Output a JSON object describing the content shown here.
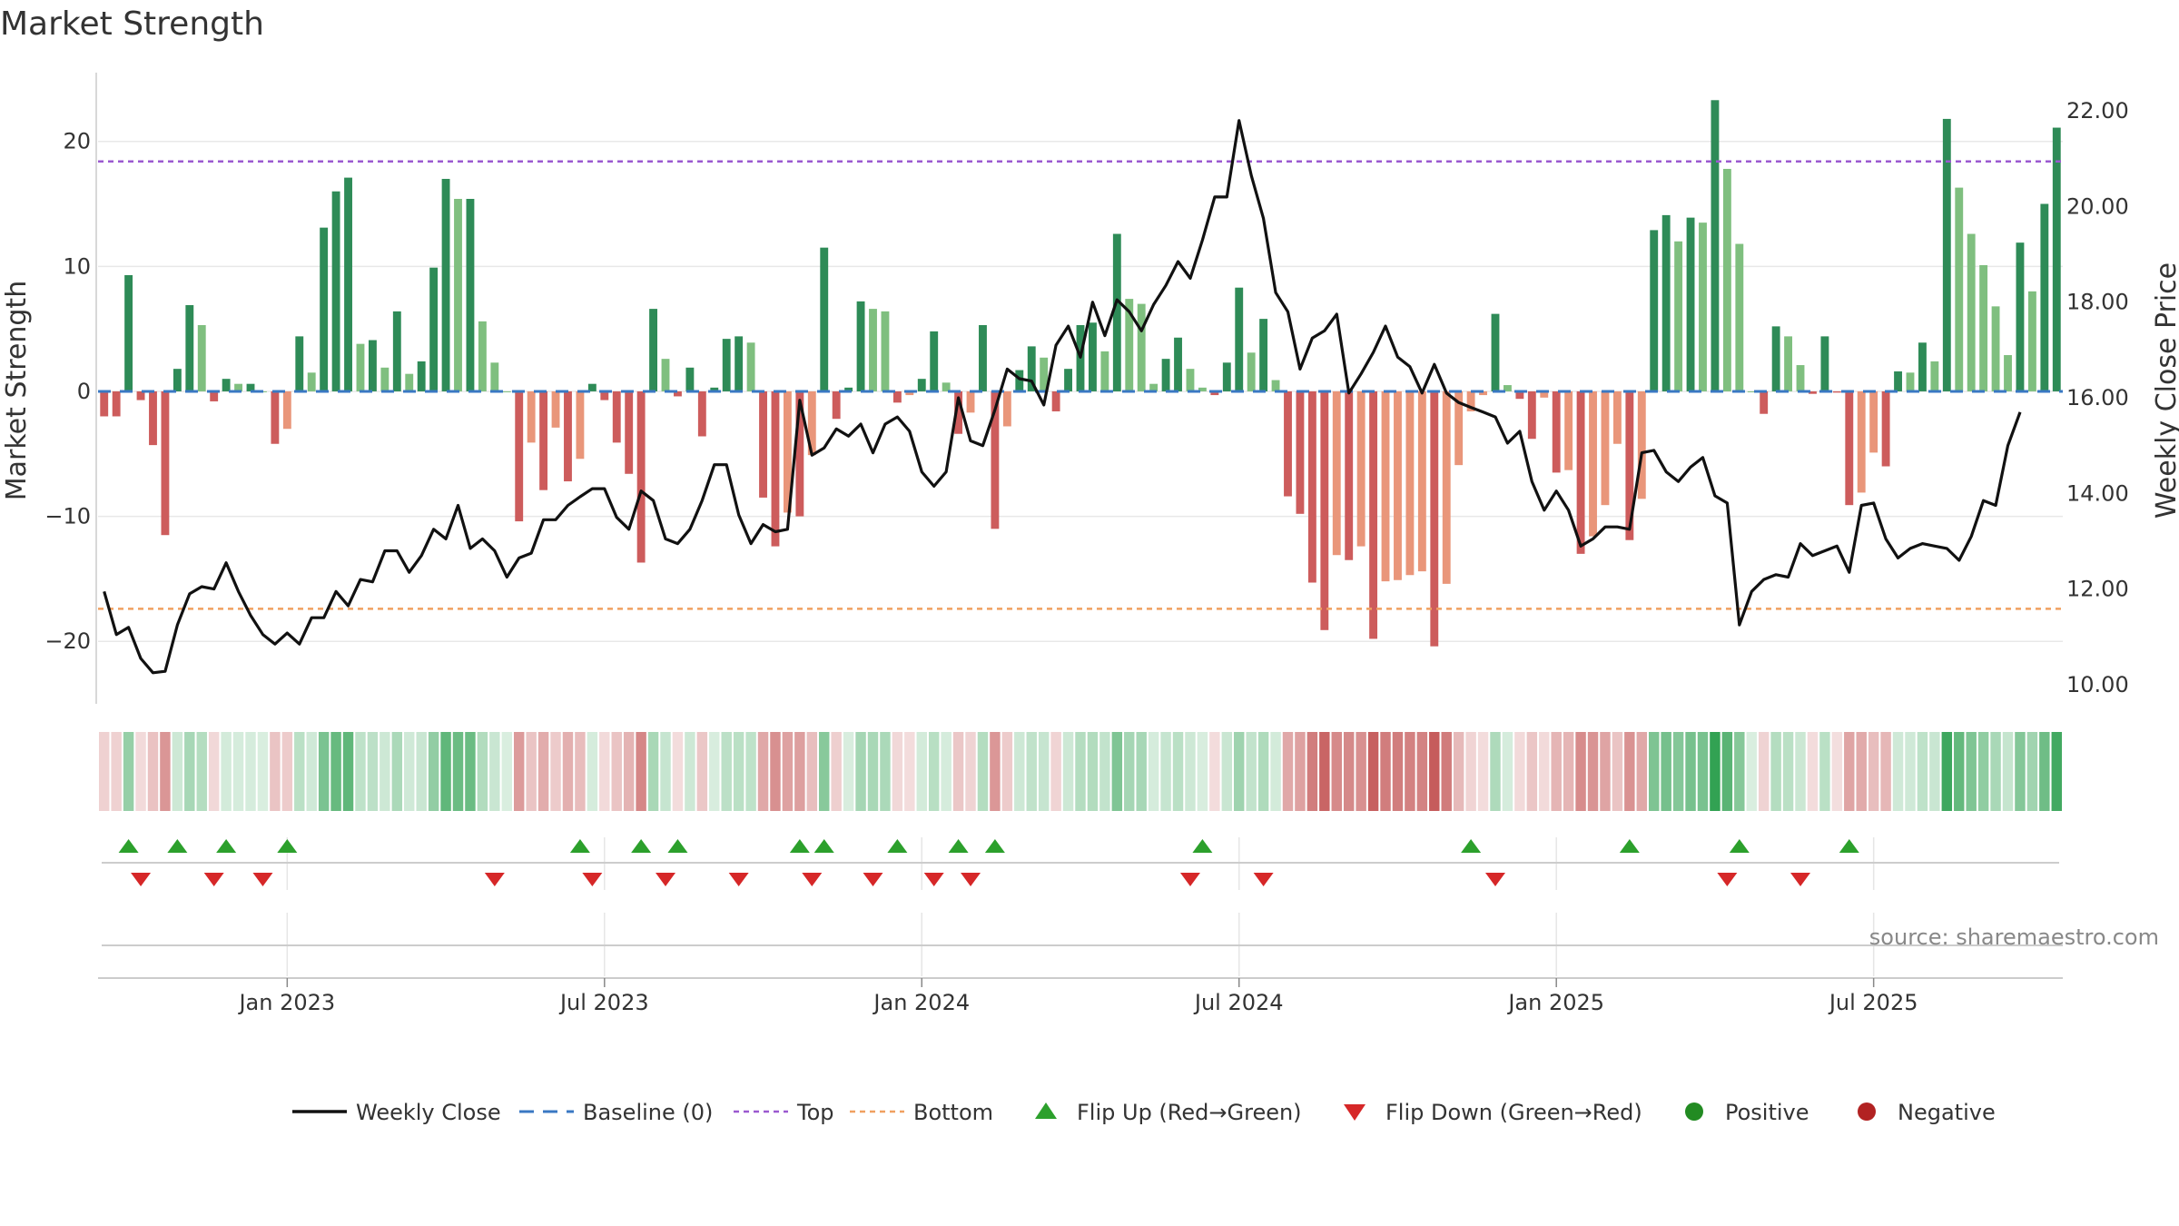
{
  "chart_data": {
    "type": "bar",
    "title": "Market Strength",
    "ylabel": "Market Strength",
    "y2label": "Weekly Close Price",
    "ylim": [
      -25,
      25.5
    ],
    "y2lim": [
      9.6,
      22.8
    ],
    "yticks": [
      20,
      10,
      0,
      -10,
      -20
    ],
    "ytick_labels": [
      "20",
      "10",
      "0",
      "−10",
      "−20"
    ],
    "y2ticks": [
      22,
      20,
      18,
      16,
      14,
      12,
      10
    ],
    "y2tick_labels": [
      "22.00",
      "20.00",
      "18.00",
      "16.00",
      "14.00",
      "12.00",
      "10.00"
    ],
    "date_ticks": [
      "Jan 2023",
      "Jul 2023",
      "Jan 2024",
      "Jul 2024",
      "Jan 2025",
      "Jul 2025"
    ],
    "date_tick_weeks": [
      15,
      41,
      67,
      93,
      119,
      145
    ],
    "top_level": 18.4,
    "bottom_level": -17.4,
    "baseline": 0,
    "strength": [
      -2,
      -2,
      9.3,
      -0.7,
      -4.3,
      -11.5,
      1.8,
      6.9,
      5.3,
      -0.8,
      1,
      0.6,
      0.6,
      0,
      -4.2,
      -3,
      4.4,
      1.5,
      13.1,
      16,
      17.1,
      3.8,
      4.1,
      1.9,
      6.4,
      1.4,
      2.4,
      9.9,
      17,
      15.4,
      15.4,
      5.6,
      2.3,
      0,
      -10.4,
      -4.1,
      -7.9,
      -2.9,
      -7.2,
      -5.4,
      0.6,
      -0.7,
      -4.1,
      -6.6,
      -13.7,
      6.6,
      2.6,
      -0.4,
      1.9,
      -3.6,
      0.3,
      4.2,
      4.4,
      3.9,
      -8.5,
      -12.4,
      -9.7,
      -10,
      -5.1,
      11.5,
      -2.2,
      0.3,
      7.2,
      6.6,
      6.4,
      -0.9,
      -0.3,
      1,
      4.8,
      0.7,
      -3.4,
      -1.7,
      5.3,
      -11,
      -2.8,
      1.7,
      3.6,
      2.7,
      -1.6,
      1.8,
      5.3,
      5.5,
      3.2,
      12.6,
      7.4,
      7,
      0.6,
      2.6,
      4.3,
      1.8,
      0.3,
      -0.3,
      2.3,
      8.3,
      3.1,
      5.8,
      0.9,
      -8.4,
      -9.8,
      -15.3,
      -19.1,
      -13.1,
      -13.5,
      -12.4,
      -19.8,
      -15.2,
      -15.1,
      -14.7,
      -14.4,
      -20.4,
      -15.4,
      -5.9,
      -1.6,
      -0.3,
      6.2,
      0.5,
      -0.6,
      -3.8,
      -0.5,
      -6.5,
      -6.3,
      -13,
      -11.6,
      -9.1,
      -4.2,
      -11.9,
      -8.6,
      12.9,
      14.1,
      12,
      13.9,
      13.5,
      23.3,
      17.8,
      11.8,
      0,
      -1.8,
      5.2,
      4.4,
      2.1,
      -0.2,
      4.4,
      -0.1,
      -9.1,
      -8.1,
      -4.9,
      -6,
      1.6,
      1.5,
      3.9,
      2.4,
      21.8,
      16.3,
      12.6,
      10.1,
      6.8,
      2.9,
      11.9,
      8,
      15,
      21.1
    ],
    "price": [
      11.95,
      11.05,
      11.2,
      10.55,
      10.25,
      10.28,
      11.25,
      11.9,
      12.05,
      12.0,
      12.55,
      11.95,
      11.45,
      11.05,
      10.85,
      11.08,
      10.85,
      11.4,
      11.4,
      11.95,
      11.65,
      12.2,
      12.15,
      12.8,
      12.8,
      12.35,
      12.7,
      13.25,
      13.05,
      13.75,
      12.85,
      13.05,
      12.8,
      12.25,
      12.65,
      12.75,
      13.45,
      13.45,
      13.75,
      13.93,
      14.1,
      14.1,
      13.5,
      13.25,
      14.05,
      13.85,
      13.05,
      12.95,
      13.25,
      13.85,
      14.6,
      14.6,
      13.55,
      12.95,
      13.35,
      13.2,
      13.25,
      15.95,
      14.8,
      14.95,
      15.35,
      15.2,
      15.45,
      14.85,
      15.45,
      15.6,
      15.3,
      14.45,
      14.15,
      14.45,
      16.0,
      15.1,
      15.0,
      15.75,
      16.6,
      16.4,
      16.35,
      15.85,
      17.1,
      17.5,
      16.85,
      18.0,
      17.3,
      18.05,
      17.8,
      17.4,
      17.95,
      18.35,
      18.85,
      18.5,
      19.3,
      20.2,
      20.2,
      21.8,
      20.65,
      19.75,
      18.2,
      17.8,
      16.6,
      17.25,
      17.4,
      17.75,
      16.1,
      16.5,
      16.95,
      17.5,
      16.85,
      16.65,
      16.1,
      16.7,
      16.1,
      15.9,
      15.8,
      15.7,
      15.6,
      15.05,
      15.3,
      14.25,
      13.65,
      14.05,
      13.65,
      12.9,
      13.05,
      13.3,
      13.3,
      13.25,
      14.85,
      14.9,
      14.45,
      14.25,
      14.55,
      14.75,
      13.95,
      13.8,
      11.25,
      11.95,
      12.2,
      12.3,
      12.25,
      12.95,
      12.7,
      12.8,
      12.9,
      12.35,
      13.75,
      13.8,
      13.05,
      12.65,
      12.85,
      12.95,
      12.9,
      12.85,
      12.6,
      13.1,
      13.85,
      13.75,
      15.0,
      15.7
    ],
    "flip_up_weeks": [
      2,
      6,
      10,
      15,
      39,
      44,
      47,
      57,
      59,
      65,
      70,
      73,
      90,
      112,
      125,
      134,
      143
    ],
    "flip_down_weeks": [
      3,
      9,
      13,
      32,
      40,
      46,
      52,
      58,
      63,
      68,
      71,
      89,
      95,
      114,
      133,
      139
    ],
    "series": [
      {
        "name": "Weekly Close",
        "style": "line",
        "color": "#111111"
      },
      {
        "name": "Baseline (0)",
        "style": "dash",
        "color": "#3a78c3"
      },
      {
        "name": "Top",
        "style": "dot",
        "color": "#9b59d0"
      },
      {
        "name": "Bottom",
        "style": "dot",
        "color": "#f0a060"
      },
      {
        "name": "Flip Up (Red→Green)",
        "style": "tri-up",
        "color": "#2ca02c"
      },
      {
        "name": "Flip Down (Green→Red)",
        "style": "tri-down",
        "color": "#d62728"
      },
      {
        "name": "Positive",
        "style": "circle",
        "color": "#228b22"
      },
      {
        "name": "Negative",
        "style": "circle",
        "color": "#b22222"
      }
    ],
    "colors": {
      "pos_strong": "#2e8b57",
      "pos_light": "#7fbf7f",
      "neg_strong": "#cd5c5c",
      "neg_light": "#e9967a",
      "price_line": "#111111",
      "top_line": "#9b59d0",
      "bottom_line": "#f0a060",
      "baseline": "#3a78c3",
      "flip_up": "#2ca02c",
      "flip_down": "#d62728"
    }
  },
  "source_text": "source: sharemaestro.com"
}
